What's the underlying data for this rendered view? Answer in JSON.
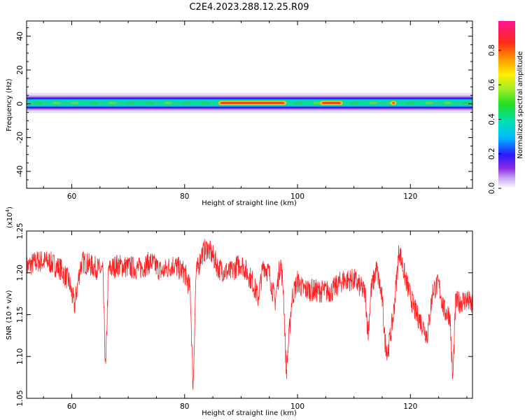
{
  "title": "C2E4.2023.288.12.25.R09",
  "colors": {
    "trace": "#ff2222",
    "palette": [
      "#ffffff",
      "#c9a8f5",
      "#8a2be2",
      "#2a1aff",
      "#00b8ff",
      "#00e0b0",
      "#22dd22",
      "#aaee22",
      "#ffee00",
      "#ff9a00",
      "#ff2a1a",
      "#ff1493"
    ]
  },
  "chart_data": [
    {
      "type": "heatmap",
      "title": "C2E4.2023.288.12.25.R09",
      "xlabel": "Height of straight line (km)",
      "ylabel": "Frequency (Hz)",
      "xlim": [
        52,
        131
      ],
      "ylim": [
        -50,
        49
      ],
      "xticks": [
        "60",
        "80",
        "100",
        "120"
      ],
      "xtick_values": [
        60,
        80,
        100,
        120
      ],
      "yticks": [
        "40",
        "20",
        "0",
        "-20",
        "-40"
      ],
      "ytick_values": [
        40,
        20,
        0,
        -20,
        -40
      ],
      "colorbar": {
        "label": "Normalized spectral amplitude",
        "range": [
          0,
          0.97
        ],
        "ticks": [
          "0.0",
          "0.2",
          "0.4",
          "0.6",
          "0.8"
        ],
        "tick_values": [
          0.0,
          0.2,
          0.4,
          0.6,
          0.8
        ]
      },
      "band": {
        "center_hz": 0.5,
        "core_halfwidth_hz": 1.5,
        "outer_halfwidth_hz": 6,
        "hotspots": [
          {
            "x_start": 86,
            "x_end": 98,
            "level": 0.95
          },
          {
            "x_start": 104,
            "x_end": 108,
            "level": 0.75
          },
          {
            "x_start": 116.5,
            "x_end": 117.5,
            "level": 0.8
          }
        ]
      }
    },
    {
      "type": "line",
      "xlabel": "Height of straight line (km)",
      "ylabel": "SNR (10 * v/v)",
      "scale_label": "(x10^4)",
      "scale_base": "(x10",
      "scale_exp": "4",
      "scale_close": ")",
      "xlim": [
        52,
        131
      ],
      "ylim": [
        1.05,
        1.25
      ],
      "xticks": [
        "60",
        "80",
        "100",
        "120"
      ],
      "xtick_values": [
        60,
        80,
        100,
        120
      ],
      "yticks": [
        "1.25",
        "1.20",
        "1.15",
        "1.10",
        "1.05"
      ],
      "ytick_values": [
        1.25,
        1.2,
        1.15,
        1.1,
        1.05
      ],
      "series": [
        {
          "x": [
            52,
            54,
            56,
            58,
            59.5,
            60.5,
            61.5,
            62,
            64,
            65.5,
            66,
            66.5,
            68,
            70,
            72,
            74,
            76,
            78,
            80,
            81,
            81.5,
            82,
            83,
            84,
            85,
            86,
            88,
            89,
            90,
            92,
            93,
            94,
            95,
            96,
            97,
            97.5,
            98,
            99,
            100,
            101,
            102,
            104,
            106,
            108,
            110,
            112,
            112.5,
            113,
            114,
            115,
            115.5,
            116,
            117,
            118,
            119,
            120,
            121,
            122,
            123,
            124,
            125,
            126,
            127,
            127.5,
            128,
            130,
            131
          ],
          "y": [
            1.207,
            1.214,
            1.213,
            1.205,
            1.19,
            1.16,
            1.207,
            1.213,
            1.207,
            1.202,
            1.08,
            1.203,
            1.209,
            1.207,
            1.205,
            1.213,
            1.201,
            1.21,
            1.2,
            1.18,
            1.06,
            1.197,
            1.222,
            1.23,
            1.22,
            1.205,
            1.2,
            1.206,
            1.212,
            1.19,
            1.17,
            1.21,
            1.199,
            1.165,
            1.213,
            1.18,
            1.08,
            1.17,
            1.19,
            1.18,
            1.18,
            1.178,
            1.178,
            1.191,
            1.192,
            1.176,
            1.125,
            1.178,
            1.205,
            1.168,
            1.118,
            1.105,
            1.15,
            1.228,
            1.196,
            1.172,
            1.151,
            1.14,
            1.125,
            1.18,
            1.186,
            1.154,
            1.15,
            1.07,
            1.164,
            1.168,
            1.16
          ]
        }
      ]
    }
  ]
}
